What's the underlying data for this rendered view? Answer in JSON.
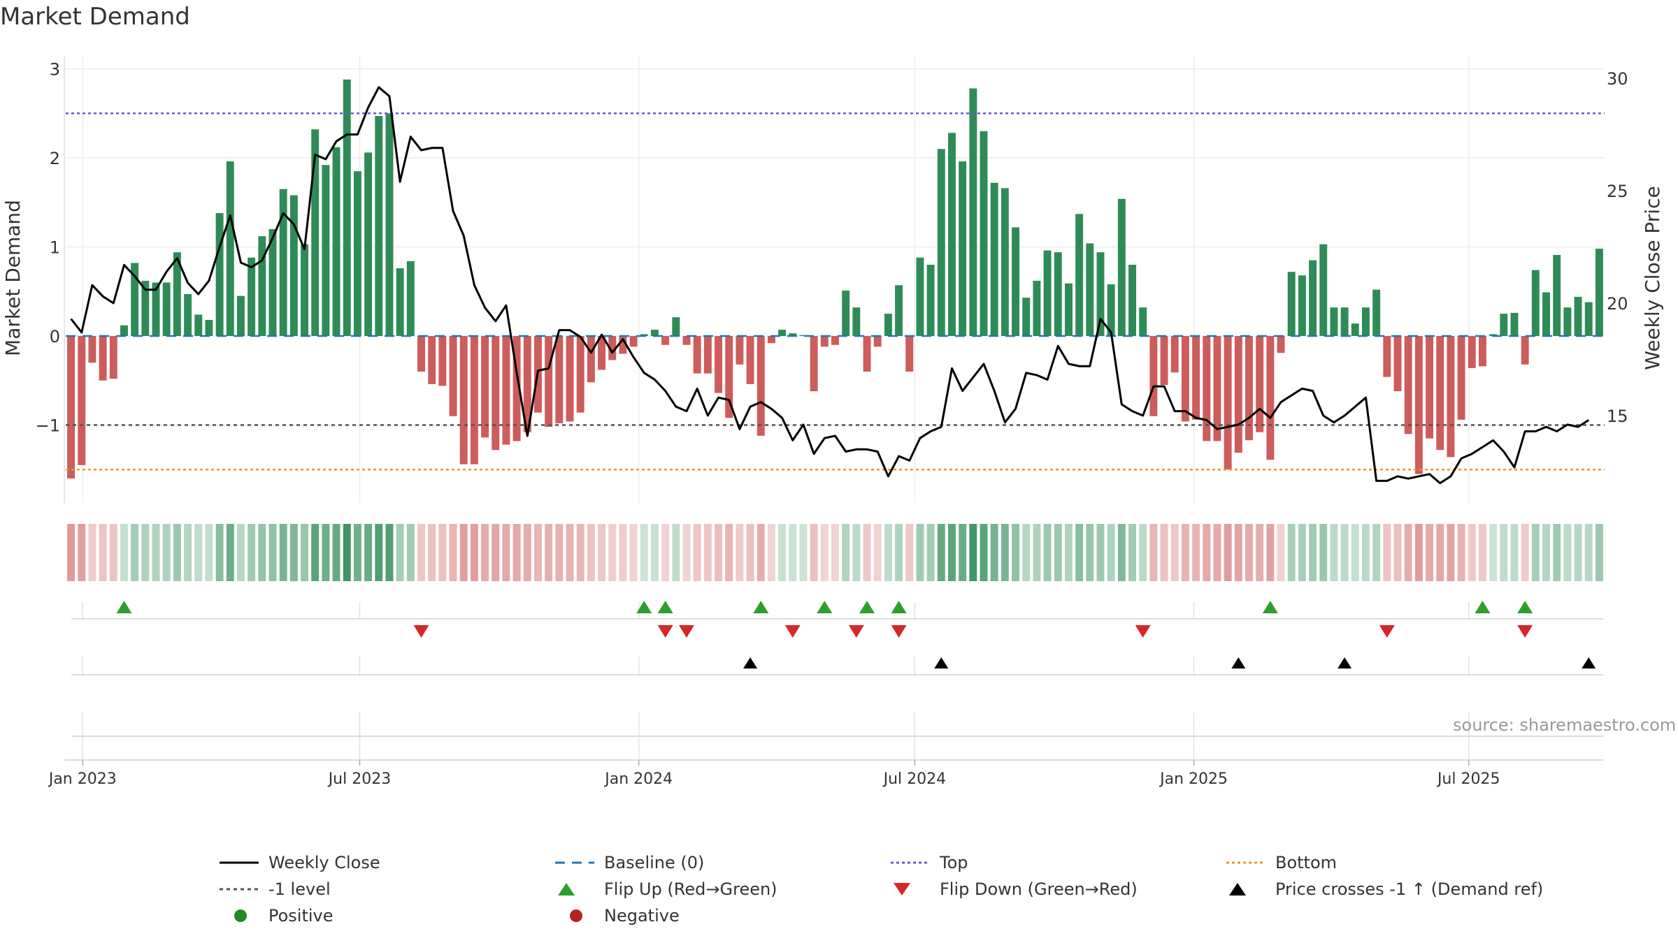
{
  "title": "Market Demand",
  "source": "source: sharemaestro.com",
  "colors": {
    "green": "#2e8b57",
    "red": "#cd5c5c",
    "price": "#000000",
    "top": "#6a5acd",
    "bottom": "#e69a28",
    "minus1": "#555555",
    "baseline": "#1f77b4",
    "flip_up": "#2ca02c",
    "flip_down": "#d62728"
  },
  "chart_data": {
    "type": "bar+line",
    "title": "Market Demand",
    "ylabel_left": "Market Demand",
    "ylabel_right": "Weekly Close Price",
    "yticks_left": [
      "3",
      "2",
      "1",
      "0",
      "−1"
    ],
    "ytick_values_left": [
      3,
      2,
      1,
      0,
      -1
    ],
    "yticks_right": [
      "30",
      "25",
      "20",
      "15"
    ],
    "ytick_values_right": [
      30,
      25,
      20,
      15
    ],
    "ylim_left": [
      -1.9,
      3.1
    ],
    "ylim_right": [
      10.8,
      30.9
    ],
    "xticks": [
      "Jan 2023",
      "Jul 2023",
      "Jan 2024",
      "Jul 2024",
      "Jan 2025",
      "Jul 2025"
    ],
    "xtick_weeks": [
      1.6,
      27.7,
      54.0,
      80.0,
      106.3,
      132.2
    ],
    "reference_lines": {
      "top": 2.5,
      "bottom": -1.5,
      "minus1": -1,
      "baseline": 0
    },
    "demand": [
      -1.6,
      -1.45,
      -0.3,
      -0.5,
      -0.48,
      0.12,
      0.82,
      0.62,
      0.6,
      0.6,
      0.94,
      0.47,
      0.24,
      0.18,
      1.38,
      1.96,
      0.45,
      0.88,
      1.12,
      1.2,
      1.65,
      1.58,
      1.03,
      2.32,
      1.92,
      2.12,
      2.88,
      1.85,
      2.06,
      2.47,
      2.5,
      0.76,
      0.84,
      -0.4,
      -0.54,
      -0.56,
      -0.9,
      -1.44,
      -1.44,
      -1.14,
      -1.28,
      -1.22,
      -1.18,
      -1.08,
      -0.86,
      -1.02,
      -0.98,
      -0.96,
      -0.86,
      -0.52,
      -0.38,
      -0.27,
      -0.2,
      -0.12,
      0.02,
      0.07,
      -0.1,
      0.21,
      -0.1,
      -0.42,
      -0.42,
      -0.64,
      -0.92,
      -0.32,
      -0.54,
      -1.12,
      -0.08,
      0.07,
      0.03,
      0.01,
      -0.62,
      -0.12,
      -0.1,
      0.51,
      0.32,
      -0.4,
      -0.12,
      0.25,
      0.57,
      -0.4,
      0.88,
      0.8,
      2.1,
      2.28,
      1.96,
      2.78,
      2.3,
      1.72,
      1.66,
      1.22,
      0.43,
      0.62,
      0.96,
      0.94,
      0.59,
      1.37,
      1.04,
      0.94,
      0.58,
      1.54,
      0.8,
      0.32,
      -0.9,
      -0.55,
      -0.41,
      -0.96,
      -0.94,
      -1.18,
      -1.18,
      -1.5,
      -1.31,
      -1.17,
      -1.08,
      -1.39,
      -0.19,
      0.72,
      0.68,
      0.85,
      1.03,
      0.32,
      0.32,
      0.14,
      0.32,
      0.52,
      -0.46,
      -0.62,
      -1.1,
      -1.55,
      -1.15,
      -1.28,
      -1.36,
      -0.94,
      -0.36,
      -0.34,
      0.02,
      0.25,
      0.26,
      -0.32,
      0.74,
      0.49,
      0.91,
      0.32,
      0.44,
      0.38,
      0.98
    ],
    "price": [
      19.3,
      18.7,
      20.8,
      20.3,
      20.0,
      21.7,
      21.2,
      20.6,
      20.6,
      21.4,
      22.0,
      20.9,
      20.4,
      21.0,
      22.5,
      23.9,
      21.8,
      21.6,
      21.9,
      22.9,
      24.0,
      23.5,
      22.4,
      26.6,
      26.4,
      27.2,
      27.5,
      27.5,
      28.7,
      29.6,
      29.2,
      25.4,
      27.4,
      26.8,
      26.9,
      26.9,
      24.1,
      23.0,
      20.8,
      19.8,
      19.2,
      19.9,
      16.9,
      14.1,
      17.0,
      17.1,
      18.8,
      18.8,
      18.5,
      17.8,
      18.6,
      17.8,
      18.4,
      17.6,
      16.9,
      16.6,
      16.1,
      15.4,
      15.2,
      16.2,
      15.0,
      15.8,
      15.7,
      14.4,
      15.4,
      15.6,
      15.3,
      14.9,
      13.9,
      14.6,
      13.3,
      14.0,
      14.1,
      13.4,
      13.5,
      13.5,
      13.4,
      12.3,
      13.2,
      13.0,
      14.0,
      14.3,
      14.5,
      17.1,
      16.1,
      16.7,
      17.3,
      16.1,
      14.7,
      15.3,
      16.9,
      16.8,
      16.6,
      18.1,
      17.3,
      17.2,
      17.2,
      19.3,
      18.7,
      15.5,
      15.2,
      15.0,
      16.3,
      16.3,
      15.2,
      15.2,
      14.9,
      14.8,
      14.4,
      14.5,
      14.6,
      14.9,
      15.3,
      14.9,
      15.6,
      15.9,
      16.2,
      16.1,
      15.0,
      14.7,
      15.0,
      15.4,
      15.8,
      12.1,
      12.1,
      12.3,
      12.2,
      12.3,
      12.4,
      12.0,
      12.3,
      13.1,
      13.3,
      13.6,
      13.9,
      13.4,
      12.7,
      14.3,
      14.3,
      14.5,
      14.3,
      14.6,
      14.5,
      14.8
    ],
    "flip_up_weeks": [
      5,
      54,
      56,
      65,
      71,
      75,
      78,
      113,
      133,
      137
    ],
    "flip_down_weeks": [
      33,
      56,
      58,
      68,
      74,
      78,
      101,
      124,
      137
    ],
    "price_cross_weeks": [
      64,
      82,
      110,
      120,
      143
    ],
    "legend": [
      "Weekly Close",
      "Baseline (0)",
      "Top",
      "Bottom",
      "-1 level",
      "Flip Up (Red→Green)",
      "Flip Down (Green→Red)",
      "Price crosses -1 ↑ (Demand ref)",
      "Positive",
      "Negative"
    ]
  }
}
